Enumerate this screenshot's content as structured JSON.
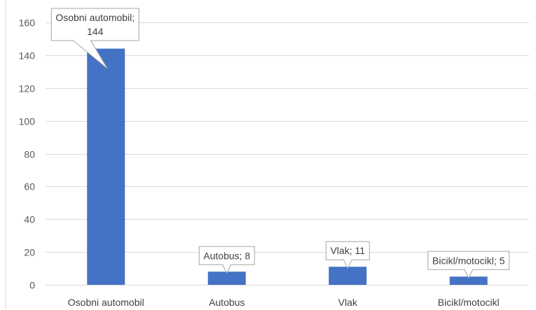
{
  "chart_data": {
    "type": "bar",
    "categories": [
      "Osobni automobil",
      "Autobus",
      "Vlak",
      "Bicikl/motocikl"
    ],
    "values": [
      144,
      8,
      11,
      5
    ],
    "data_labels": [
      [
        "Osobni automobil;",
        "144"
      ],
      [
        "Autobus; 8"
      ],
      [
        "Vlak; 11"
      ],
      [
        "Bicikl/motocikl; 5"
      ]
    ],
    "title": "",
    "xlabel": "",
    "ylabel": "",
    "ylim": [
      0,
      160
    ],
    "yticks": [
      "0",
      "20",
      "40",
      "60",
      "80",
      "100",
      "120",
      "140",
      "160"
    ],
    "grid": true,
    "legend": "none",
    "bar_color": "#4472C4",
    "grid_color": "#D9D9D9",
    "callout_border_color": "#A6A6A6"
  }
}
